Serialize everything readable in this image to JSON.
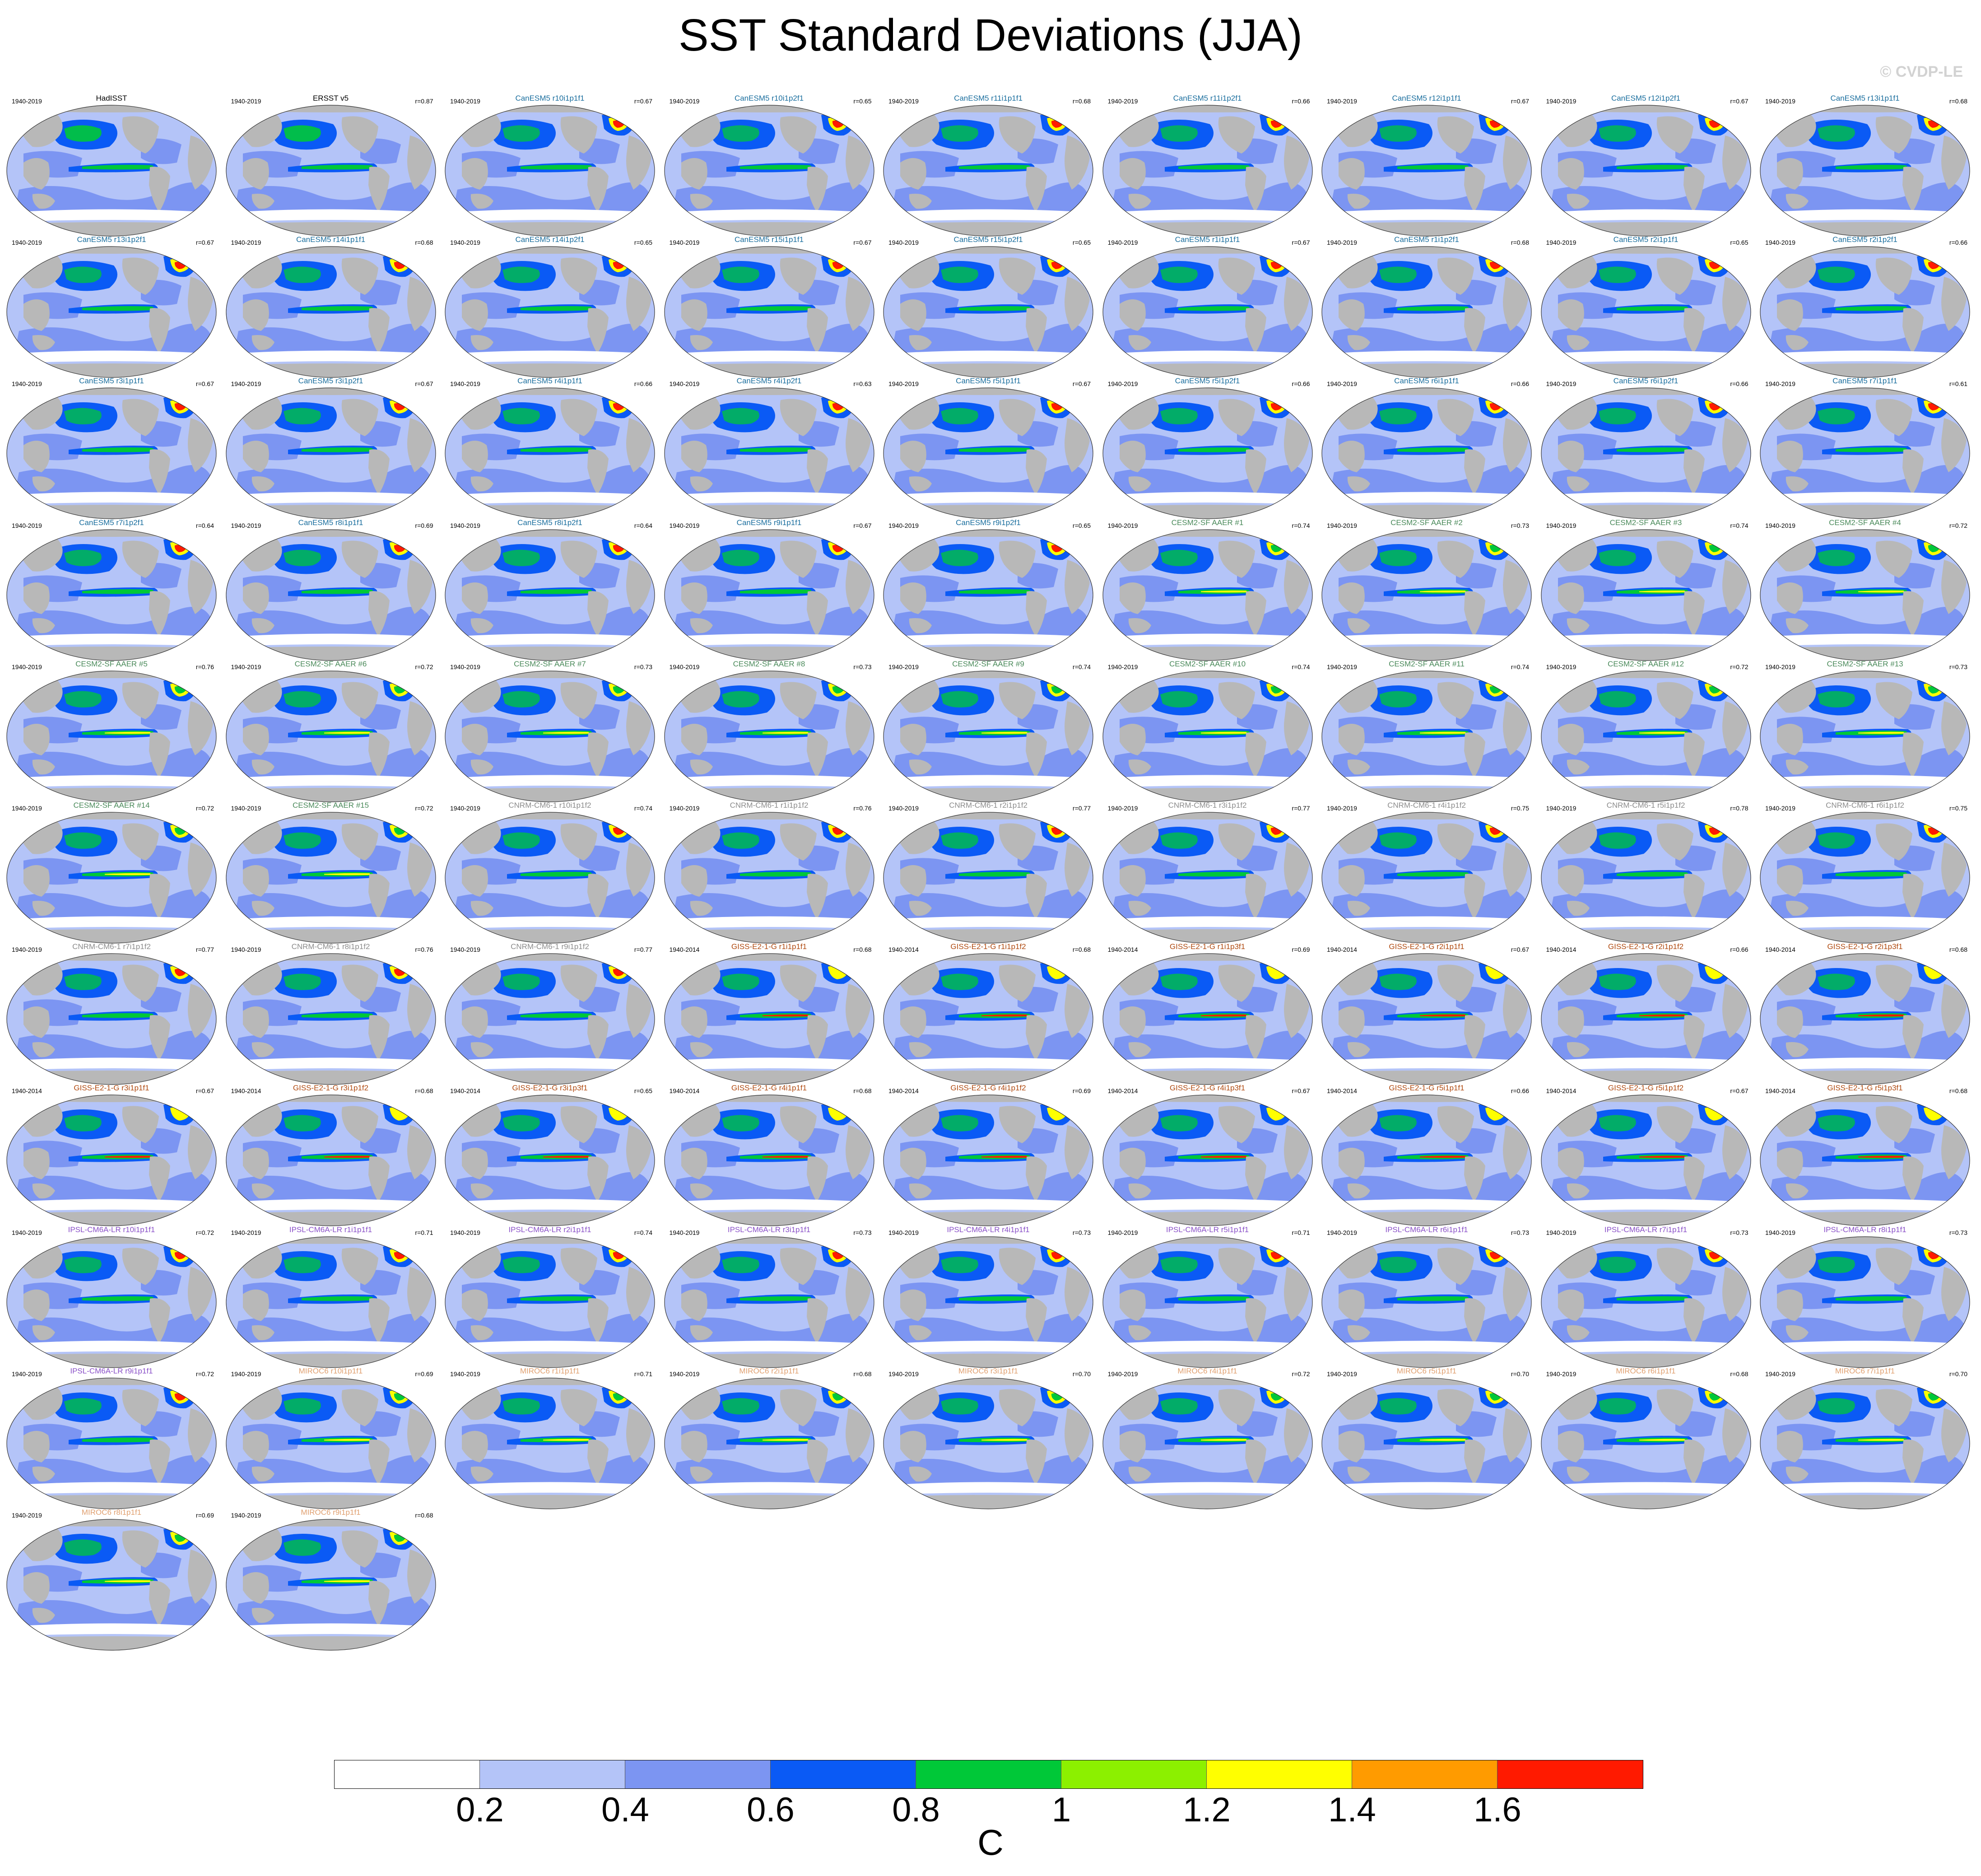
{
  "title": "SST Standard Deviations (JJA)",
  "watermark": "© CVDP-LE",
  "units": "C",
  "colorbar": {
    "ticks": [
      "0.2",
      "0.4",
      "0.6",
      "0.8",
      "1",
      "1.2",
      "1.4",
      "1.6"
    ],
    "colors": [
      "#ffffff",
      "#b4c4f8",
      "#7c95f2",
      "#0a5af5",
      "#00c838",
      "#8cf000",
      "#ffff00",
      "#ff9b00",
      "#ff1a00"
    ]
  },
  "map_colors": {
    "ocean_base": "#b4c4f8",
    "ocean_mid": "#7c95f2",
    "ocean_high": "#0a5af5",
    "land": "#b8b8b8",
    "ice": "#ffffff",
    "tropical": "#00c838",
    "yellow": "#ffff00",
    "red": "#ff1a00"
  },
  "model_colors": {
    "obs": "#000000",
    "CanESM5": "#1a6e9e",
    "CESM2": "#4a8a5a",
    "CNRM": "#8c8c8c",
    "GISS": "#b04a10",
    "IPSL": "#8a50c8",
    "MIROC": "#e0a070"
  },
  "panels": [
    {
      "name": "HadISST",
      "period": "1940-2019",
      "r": "",
      "model": "obs"
    },
    {
      "name": "ERSST v5",
      "period": "1940-2019",
      "r": "r=0.87",
      "model": "obs"
    },
    {
      "name": "CanESM5 r10i1p1f1",
      "period": "1940-2019",
      "r": "r=0.67",
      "model": "CanESM5"
    },
    {
      "name": "CanESM5 r10i1p2f1",
      "period": "1940-2019",
      "r": "r=0.65",
      "model": "CanESM5"
    },
    {
      "name": "CanESM5 r11i1p1f1",
      "period": "1940-2019",
      "r": "r=0.68",
      "model": "CanESM5"
    },
    {
      "name": "CanESM5 r11i1p2f1",
      "period": "1940-2019",
      "r": "r=0.66",
      "model": "CanESM5"
    },
    {
      "name": "CanESM5 r12i1p1f1",
      "period": "1940-2019",
      "r": "r=0.67",
      "model": "CanESM5"
    },
    {
      "name": "CanESM5 r12i1p2f1",
      "period": "1940-2019",
      "r": "r=0.67",
      "model": "CanESM5"
    },
    {
      "name": "CanESM5 r13i1p1f1",
      "period": "1940-2019",
      "r": "r=0.68",
      "model": "CanESM5"
    },
    {
      "name": "CanESM5 r13i1p2f1",
      "period": "1940-2019",
      "r": "r=0.67",
      "model": "CanESM5"
    },
    {
      "name": "CanESM5 r14i1p1f1",
      "period": "1940-2019",
      "r": "r=0.68",
      "model": "CanESM5"
    },
    {
      "name": "CanESM5 r14i1p2f1",
      "period": "1940-2019",
      "r": "r=0.65",
      "model": "CanESM5"
    },
    {
      "name": "CanESM5 r15i1p1f1",
      "period": "1940-2019",
      "r": "r=0.67",
      "model": "CanESM5"
    },
    {
      "name": "CanESM5 r15i1p2f1",
      "period": "1940-2019",
      "r": "r=0.65",
      "model": "CanESM5"
    },
    {
      "name": "CanESM5 r1i1p1f1",
      "period": "1940-2019",
      "r": "r=0.67",
      "model": "CanESM5"
    },
    {
      "name": "CanESM5 r1i1p2f1",
      "period": "1940-2019",
      "r": "r=0.68",
      "model": "CanESM5"
    },
    {
      "name": "CanESM5 r2i1p1f1",
      "period": "1940-2019",
      "r": "r=0.65",
      "model": "CanESM5"
    },
    {
      "name": "CanESM5 r2i1p2f1",
      "period": "1940-2019",
      "r": "r=0.66",
      "model": "CanESM5"
    },
    {
      "name": "CanESM5 r3i1p1f1",
      "period": "1940-2019",
      "r": "r=0.67",
      "model": "CanESM5"
    },
    {
      "name": "CanESM5 r3i1p2f1",
      "period": "1940-2019",
      "r": "r=0.67",
      "model": "CanESM5"
    },
    {
      "name": "CanESM5 r4i1p1f1",
      "period": "1940-2019",
      "r": "r=0.66",
      "model": "CanESM5"
    },
    {
      "name": "CanESM5 r4i1p2f1",
      "period": "1940-2019",
      "r": "r=0.63",
      "model": "CanESM5"
    },
    {
      "name": "CanESM5 r5i1p1f1",
      "period": "1940-2019",
      "r": "r=0.67",
      "model": "CanESM5"
    },
    {
      "name": "CanESM5 r5i1p2f1",
      "period": "1940-2019",
      "r": "r=0.66",
      "model": "CanESM5"
    },
    {
      "name": "CanESM5 r6i1p1f1",
      "period": "1940-2019",
      "r": "r=0.66",
      "model": "CanESM5"
    },
    {
      "name": "CanESM5 r6i1p2f1",
      "period": "1940-2019",
      "r": "r=0.66",
      "model": "CanESM5"
    },
    {
      "name": "CanESM5 r7i1p1f1",
      "period": "1940-2019",
      "r": "r=0.61",
      "model": "CanESM5"
    },
    {
      "name": "CanESM5 r7i1p2f1",
      "period": "1940-2019",
      "r": "r=0.64",
      "model": "CanESM5"
    },
    {
      "name": "CanESM5 r8i1p1f1",
      "period": "1940-2019",
      "r": "r=0.69",
      "model": "CanESM5"
    },
    {
      "name": "CanESM5 r8i1p2f1",
      "period": "1940-2019",
      "r": "r=0.64",
      "model": "CanESM5"
    },
    {
      "name": "CanESM5 r9i1p1f1",
      "period": "1940-2019",
      "r": "r=0.67",
      "model": "CanESM5"
    },
    {
      "name": "CanESM5 r9i1p2f1",
      "period": "1940-2019",
      "r": "r=0.65",
      "model": "CanESM5"
    },
    {
      "name": "CESM2-SF AAER #1",
      "period": "1940-2019",
      "r": "r=0.74",
      "model": "CESM2"
    },
    {
      "name": "CESM2-SF AAER #2",
      "period": "1940-2019",
      "r": "r=0.73",
      "model": "CESM2"
    },
    {
      "name": "CESM2-SF AAER #3",
      "period": "1940-2019",
      "r": "r=0.74",
      "model": "CESM2"
    },
    {
      "name": "CESM2-SF AAER #4",
      "period": "1940-2019",
      "r": "r=0.72",
      "model": "CESM2"
    },
    {
      "name": "CESM2-SF AAER #5",
      "period": "1940-2019",
      "r": "r=0.76",
      "model": "CESM2"
    },
    {
      "name": "CESM2-SF AAER #6",
      "period": "1940-2019",
      "r": "r=0.72",
      "model": "CESM2"
    },
    {
      "name": "CESM2-SF AAER #7",
      "period": "1940-2019",
      "r": "r=0.73",
      "model": "CESM2"
    },
    {
      "name": "CESM2-SF AAER #8",
      "period": "1940-2019",
      "r": "r=0.73",
      "model": "CESM2"
    },
    {
      "name": "CESM2-SF AAER #9",
      "period": "1940-2019",
      "r": "r=0.74",
      "model": "CESM2"
    },
    {
      "name": "CESM2-SF AAER #10",
      "period": "1940-2019",
      "r": "r=0.74",
      "model": "CESM2"
    },
    {
      "name": "CESM2-SF AAER #11",
      "period": "1940-2019",
      "r": "r=0.74",
      "model": "CESM2"
    },
    {
      "name": "CESM2-SF AAER #12",
      "period": "1940-2019",
      "r": "r=0.72",
      "model": "CESM2"
    },
    {
      "name": "CESM2-SF AAER #13",
      "period": "1940-2019",
      "r": "r=0.73",
      "model": "CESM2"
    },
    {
      "name": "CESM2-SF AAER #14",
      "period": "1940-2019",
      "r": "r=0.72",
      "model": "CESM2"
    },
    {
      "name": "CESM2-SF AAER #15",
      "period": "1940-2019",
      "r": "r=0.72",
      "model": "CESM2"
    },
    {
      "name": "CNRM-CM6-1 r10i1p1f2",
      "period": "1940-2019",
      "r": "r=0.74",
      "model": "CNRM"
    },
    {
      "name": "CNRM-CM6-1 r1i1p1f2",
      "period": "1940-2019",
      "r": "r=0.76",
      "model": "CNRM"
    },
    {
      "name": "CNRM-CM6-1 r2i1p1f2",
      "period": "1940-2019",
      "r": "r=0.77",
      "model": "CNRM"
    },
    {
      "name": "CNRM-CM6-1 r3i1p1f2",
      "period": "1940-2019",
      "r": "r=0.77",
      "model": "CNRM"
    },
    {
      "name": "CNRM-CM6-1 r4i1p1f2",
      "period": "1940-2019",
      "r": "r=0.75",
      "model": "CNRM"
    },
    {
      "name": "CNRM-CM6-1 r5i1p1f2",
      "period": "1940-2019",
      "r": "r=0.78",
      "model": "CNRM"
    },
    {
      "name": "CNRM-CM6-1 r6i1p1f2",
      "period": "1940-2019",
      "r": "r=0.75",
      "model": "CNRM"
    },
    {
      "name": "CNRM-CM6-1 r7i1p1f2",
      "period": "1940-2019",
      "r": "r=0.77",
      "model": "CNRM"
    },
    {
      "name": "CNRM-CM6-1 r8i1p1f2",
      "period": "1940-2019",
      "r": "r=0.76",
      "model": "CNRM"
    },
    {
      "name": "CNRM-CM6-1 r9i1p1f2",
      "period": "1940-2019",
      "r": "r=0.77",
      "model": "CNRM"
    },
    {
      "name": "GISS-E2-1-G r1i1p1f1",
      "period": "1940-2014",
      "r": "r=0.68",
      "model": "GISS"
    },
    {
      "name": "GISS-E2-1-G r1i1p1f2",
      "period": "1940-2014",
      "r": "r=0.68",
      "model": "GISS"
    },
    {
      "name": "GISS-E2-1-G r1i1p3f1",
      "period": "1940-2014",
      "r": "r=0.69",
      "model": "GISS"
    },
    {
      "name": "GISS-E2-1-G r2i1p1f1",
      "period": "1940-2014",
      "r": "r=0.67",
      "model": "GISS"
    },
    {
      "name": "GISS-E2-1-G r2i1p1f2",
      "period": "1940-2014",
      "r": "r=0.66",
      "model": "GISS"
    },
    {
      "name": "GISS-E2-1-G r2i1p3f1",
      "period": "1940-2014",
      "r": "r=0.68",
      "model": "GISS"
    },
    {
      "name": "GISS-E2-1-G r3i1p1f1",
      "period": "1940-2014",
      "r": "r=0.67",
      "model": "GISS"
    },
    {
      "name": "GISS-E2-1-G r3i1p1f2",
      "period": "1940-2014",
      "r": "r=0.68",
      "model": "GISS"
    },
    {
      "name": "GISS-E2-1-G r3i1p3f1",
      "period": "1940-2014",
      "r": "r=0.65",
      "model": "GISS"
    },
    {
      "name": "GISS-E2-1-G r4i1p1f1",
      "period": "1940-2014",
      "r": "r=0.68",
      "model": "GISS"
    },
    {
      "name": "GISS-E2-1-G r4i1p1f2",
      "period": "1940-2014",
      "r": "r=0.69",
      "model": "GISS"
    },
    {
      "name": "GISS-E2-1-G r4i1p3f1",
      "period": "1940-2014",
      "r": "r=0.67",
      "model": "GISS"
    },
    {
      "name": "GISS-E2-1-G r5i1p1f1",
      "period": "1940-2014",
      "r": "r=0.66",
      "model": "GISS"
    },
    {
      "name": "GISS-E2-1-G r5i1p1f2",
      "period": "1940-2014",
      "r": "r=0.67",
      "model": "GISS"
    },
    {
      "name": "GISS-E2-1-G r5i1p3f1",
      "period": "1940-2014",
      "r": "r=0.68",
      "model": "GISS"
    },
    {
      "name": "IPSL-CM6A-LR r10i1p1f1",
      "period": "1940-2019",
      "r": "r=0.72",
      "model": "IPSL"
    },
    {
      "name": "IPSL-CM6A-LR r1i1p1f1",
      "period": "1940-2019",
      "r": "r=0.71",
      "model": "IPSL"
    },
    {
      "name": "IPSL-CM6A-LR r2i1p1f1",
      "period": "1940-2019",
      "r": "r=0.74",
      "model": "IPSL"
    },
    {
      "name": "IPSL-CM6A-LR r3i1p1f1",
      "period": "1940-2019",
      "r": "r=0.73",
      "model": "IPSL"
    },
    {
      "name": "IPSL-CM6A-LR r4i1p1f1",
      "period": "1940-2019",
      "r": "r=0.73",
      "model": "IPSL"
    },
    {
      "name": "IPSL-CM6A-LR r5i1p1f1",
      "period": "1940-2019",
      "r": "r=0.71",
      "model": "IPSL"
    },
    {
      "name": "IPSL-CM6A-LR r6i1p1f1",
      "period": "1940-2019",
      "r": "r=0.73",
      "model": "IPSL"
    },
    {
      "name": "IPSL-CM6A-LR r7i1p1f1",
      "period": "1940-2019",
      "r": "r=0.73",
      "model": "IPSL"
    },
    {
      "name": "IPSL-CM6A-LR r8i1p1f1",
      "period": "1940-2019",
      "r": "r=0.73",
      "model": "IPSL"
    },
    {
      "name": "IPSL-CM6A-LR r9i1p1f1",
      "period": "1940-2019",
      "r": "r=0.72",
      "model": "IPSL"
    },
    {
      "name": "MIROC6 r10i1p1f1",
      "period": "1940-2019",
      "r": "r=0.69",
      "model": "MIROC"
    },
    {
      "name": "MIROC6 r1i1p1f1",
      "period": "1940-2019",
      "r": "r=0.71",
      "model": "MIROC"
    },
    {
      "name": "MIROC6 r2i1p1f1",
      "period": "1940-2019",
      "r": "r=0.68",
      "model": "MIROC"
    },
    {
      "name": "MIROC6 r3i1p1f1",
      "period": "1940-2019",
      "r": "r=0.70",
      "model": "MIROC"
    },
    {
      "name": "MIROC6 r4i1p1f1",
      "period": "1940-2019",
      "r": "r=0.72",
      "model": "MIROC"
    },
    {
      "name": "MIROC6 r5i1p1f1",
      "period": "1940-2019",
      "r": "r=0.70",
      "model": "MIROC"
    },
    {
      "name": "MIROC6 r6i1p1f1",
      "period": "1940-2019",
      "r": "r=0.68",
      "model": "MIROC"
    },
    {
      "name": "MIROC6 r7i1p1f1",
      "period": "1940-2019",
      "r": "r=0.70",
      "model": "MIROC"
    },
    {
      "name": "MIROC6 r8i1p1f1",
      "period": "1940-2019",
      "r": "r=0.69",
      "model": "MIROC"
    },
    {
      "name": "MIROC6 r9i1p1f1",
      "period": "1940-2019",
      "r": "r=0.68",
      "model": "MIROC"
    }
  ]
}
